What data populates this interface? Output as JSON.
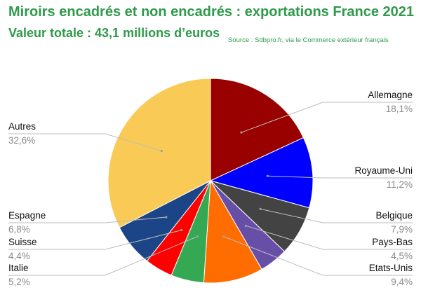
{
  "header": {
    "title": "Miroirs encadrés et non encadrés : exportations France 2021",
    "subtitle": "Valeur totale : 43,1 millions d’euros",
    "source": "Source : Sdbpro.fr, via le Commerce extérieur français"
  },
  "chart_data": {
    "type": "pie",
    "title": "Miroirs encadrés et non encadrés : exportations France 2021",
    "subtitle": "Valeur totale : 43,1 millions d’euros",
    "total_label": "43,1 millions d’euros",
    "unit": "%",
    "start_angle_deg": 0,
    "direction": "clockwise",
    "slices": [
      {
        "name": "Allemagne",
        "value": 18.1,
        "label": "18,1%",
        "color": "#990000"
      },
      {
        "name": "Royaume-Uni",
        "value": 11.2,
        "label": "11,2%",
        "color": "#0000ff"
      },
      {
        "name": "Belgique",
        "value": 7.9,
        "label": "7,9%",
        "color": "#434343"
      },
      {
        "name": "Pays-Bas",
        "value": 4.5,
        "label": "4,5%",
        "color": "#674ea7"
      },
      {
        "name": "Etats-Unis",
        "value": 9.4,
        "label": "9,4%",
        "color": "#ff6d01"
      },
      {
        "name": "Italie",
        "value": 5.2,
        "label": "5,2%",
        "color": "#34a853"
      },
      {
        "name": "Suisse",
        "value": 4.4,
        "label": "4,4%",
        "color": "#ff0000"
      },
      {
        "name": "Espagne",
        "value": 6.8,
        "label": "6,8%",
        "color": "#1c4587"
      },
      {
        "name": "Autres",
        "value": 32.6,
        "label": "32,6%",
        "color": "#f9cb56"
      }
    ]
  }
}
